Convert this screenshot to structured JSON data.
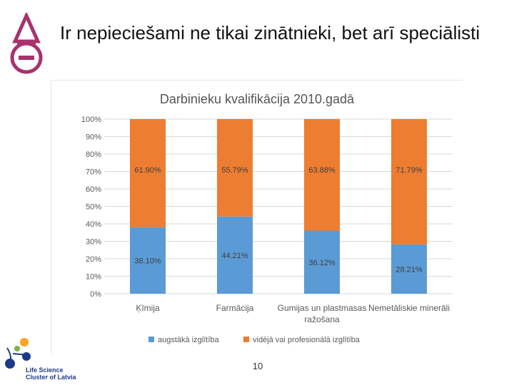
{
  "slide": {
    "title": "Ir nepieciešami ne tikai zinātnieki, bet arī speciālisti",
    "page_number": "10"
  },
  "logos": {
    "bottom_line1": "Life Science",
    "bottom_line2": "Cluster of Latvia",
    "top_icon": "chemistry-flask-logo",
    "bottom_icon": "life-science-cluster-logo"
  },
  "chart_data": {
    "type": "bar",
    "stacked": true,
    "title": "Darbinieku kvalifikācija 2010.gadā",
    "categories": [
      "Ķīmija",
      "Farmācija",
      "Gumijas un plastmasas ražošana",
      "Nemetāliskie minerāli"
    ],
    "category_lines": [
      [
        "Ķīmija"
      ],
      [
        "Farmācija"
      ],
      [
        "Gumijas un plastmasas",
        "ražošana"
      ],
      [
        "Nemetāliskie minerāli"
      ]
    ],
    "series": [
      {
        "name": "augstākā izglītība",
        "values": [
          38.1,
          44.21,
          36.12,
          28.21
        ],
        "labels": [
          "38.10%",
          "44.21%",
          "36.12%",
          "28.21%"
        ],
        "color": "#5b9bd5"
      },
      {
        "name": "vidējā vai profesionālā izglītība",
        "values": [
          61.9,
          55.79,
          63.88,
          71.79
        ],
        "labels": [
          "61.90%",
          "55.79%",
          "63.88%",
          "71.79%"
        ],
        "color": "#ed7d31"
      }
    ],
    "ylim": [
      0,
      100
    ],
    "yticks": [
      "0%",
      "10%",
      "20%",
      "30%",
      "40%",
      "50%",
      "60%",
      "70%",
      "80%",
      "90%",
      "100%"
    ],
    "grid": true,
    "legend": "bottom"
  }
}
